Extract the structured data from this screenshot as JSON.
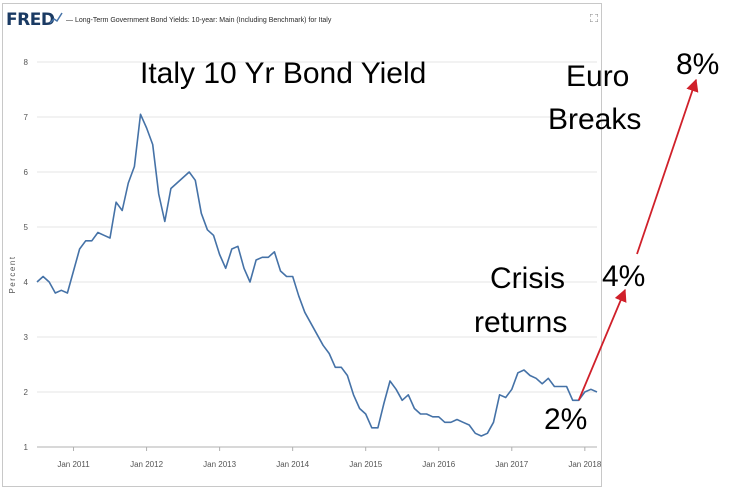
{
  "header": {
    "logo": "FRED",
    "series_title": "— Long-Term Government Bond Yields: 10-year: Main (Including Benchmark) for Italy"
  },
  "annotations": {
    "title": "Italy 10 Yr Bond Yield",
    "euro": "Euro",
    "breaks": "Breaks",
    "pct8": "8%",
    "crisis": "Crisis",
    "returns": "returns",
    "pct4": "4%",
    "pct2": "2%"
  },
  "colors": {
    "series": "#4572a7",
    "arrow": "#d0202a",
    "grid": "#e6e6e6",
    "logo": "#1a3a63"
  },
  "chart_data": {
    "type": "line",
    "ylabel": "Percent",
    "ylim": [
      1,
      8
    ],
    "yticks": [
      1,
      2,
      3,
      4,
      5,
      6,
      7,
      8
    ],
    "xlim": [
      "2010-07",
      "2018-03"
    ],
    "xticks": [
      "Jan 2011",
      "Jan 2012",
      "Jan 2013",
      "Jan 2014",
      "Jan 2015",
      "Jan 2016",
      "Jan 2017",
      "Jan 2018"
    ],
    "xtick_dates": [
      "2011-01",
      "2012-01",
      "2013-01",
      "2014-01",
      "2015-01",
      "2016-01",
      "2017-01",
      "2018-01"
    ],
    "grid": true,
    "series": [
      {
        "x": [
          "2010-07",
          "2010-08",
          "2010-09",
          "2010-10",
          "2010-11",
          "2010-12",
          "2011-01",
          "2011-02",
          "2011-03",
          "2011-04",
          "2011-05",
          "2011-06",
          "2011-07",
          "2011-08",
          "2011-09",
          "2011-10",
          "2011-11",
          "2011-12",
          "2012-01",
          "2012-02",
          "2012-03",
          "2012-04",
          "2012-05",
          "2012-06",
          "2012-07",
          "2012-08",
          "2012-09",
          "2012-10",
          "2012-11",
          "2012-12",
          "2013-01",
          "2013-02",
          "2013-03",
          "2013-04",
          "2013-05",
          "2013-06",
          "2013-07",
          "2013-08",
          "2013-09",
          "2013-10",
          "2013-11",
          "2013-12",
          "2014-01",
          "2014-02",
          "2014-03",
          "2014-04",
          "2014-05",
          "2014-06",
          "2014-07",
          "2014-08",
          "2014-09",
          "2014-10",
          "2014-11",
          "2014-12",
          "2015-01",
          "2015-02",
          "2015-03",
          "2015-04",
          "2015-05",
          "2015-06",
          "2015-07",
          "2015-08",
          "2015-09",
          "2015-10",
          "2015-11",
          "2015-12",
          "2016-01",
          "2016-02",
          "2016-03",
          "2016-04",
          "2016-05",
          "2016-06",
          "2016-07",
          "2016-08",
          "2016-09",
          "2016-10",
          "2016-11",
          "2016-12",
          "2017-01",
          "2017-02",
          "2017-03",
          "2017-04",
          "2017-05",
          "2017-06",
          "2017-07",
          "2017-08",
          "2017-09",
          "2017-10",
          "2017-11",
          "2017-12",
          "2018-01",
          "2018-02",
          "2018-03"
        ],
        "values": [
          4.0,
          4.1,
          4.0,
          3.8,
          3.85,
          3.8,
          4.2,
          4.6,
          4.75,
          4.75,
          4.9,
          4.85,
          4.8,
          5.45,
          5.3,
          5.8,
          6.1,
          7.05,
          6.8,
          6.5,
          5.6,
          5.1,
          5.7,
          5.8,
          5.9,
          6.0,
          5.85,
          5.25,
          4.95,
          4.85,
          4.5,
          4.25,
          4.6,
          4.65,
          4.25,
          4.0,
          4.4,
          4.45,
          4.45,
          4.55,
          4.2,
          4.1,
          4.1,
          3.75,
          3.45,
          3.25,
          3.05,
          2.85,
          2.7,
          2.45,
          2.45,
          2.3,
          1.95,
          1.7,
          1.6,
          1.35,
          1.35,
          1.8,
          2.2,
          2.05,
          1.85,
          1.95,
          1.7,
          1.6,
          1.6,
          1.55,
          1.55,
          1.45,
          1.45,
          1.5,
          1.45,
          1.4,
          1.25,
          1.2,
          1.25,
          1.45,
          1.95,
          1.9,
          2.05,
          2.35,
          2.4,
          2.3,
          2.25,
          2.15,
          2.25,
          2.1,
          2.1,
          2.1,
          1.85,
          1.85,
          2.0,
          2.05,
          2.0
        ]
      }
    ],
    "arrows": [
      {
        "from": {
          "x": "2017-12",
          "y": 1.85
        },
        "to": {
          "x": "2018-03",
          "y": 4.0
        }
      }
    ]
  }
}
